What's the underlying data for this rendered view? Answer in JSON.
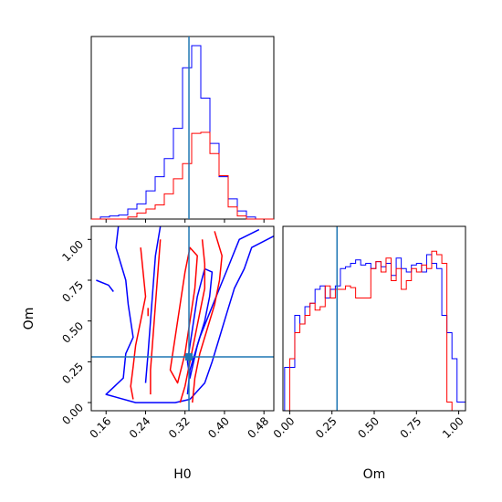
{
  "chart_data": {
    "type": "corner",
    "parameters": [
      "H0",
      "Om"
    ],
    "truth": {
      "H0": 0.328,
      "Om": 0.28
    },
    "colors": {
      "series_a": "#0000ff",
      "series_b": "#ff0000",
      "truth": "#1f77b4"
    },
    "grid": false,
    "panels": {
      "hist_H0": {
        "xlim": [
          0.13,
          0.5
        ],
        "xticks": [
          0.16,
          0.24,
          0.32,
          0.4,
          0.48
        ],
        "bin_edges": [
          0.13,
          0.1485,
          0.167,
          0.1855,
          0.204,
          0.2225,
          0.241,
          0.2595,
          0.278,
          0.2965,
          0.315,
          0.3335,
          0.352,
          0.3705,
          0.389,
          0.4075,
          0.426,
          0.4445,
          0.463,
          0.4815,
          0.5
        ],
        "series": [
          {
            "color": "blue",
            "counts": [
              0,
              2,
              3,
              4,
              10,
              15,
              28,
              42,
              60,
              90,
              150,
              172,
              120,
              75,
              42,
              20,
              8,
              2,
              0,
              0
            ]
          },
          {
            "color": "red",
            "counts": [
              0,
              0,
              0,
              0,
              2,
              6,
              10,
              14,
              25,
              40,
              55,
              85,
              86,
              65,
              43,
              12,
              3,
              0,
              0,
              0
            ]
          }
        ]
      },
      "hist_Om": {
        "xlim": [
          -0.04,
          1.04
        ],
        "xticks": [
          0.0,
          0.25,
          0.5,
          0.75,
          1.0
        ],
        "xticklabels": [
          "0.00",
          "0.25",
          "0.50",
          "0.75",
          "1.00"
        ],
        "series": [
          {
            "color": "blue",
            "bin_edges": [
              -0.03,
              0.0,
              0.03,
              0.06,
              0.09,
              0.12,
              0.15,
              0.18,
              0.21,
              0.24,
              0.27,
              0.3,
              0.33,
              0.36,
              0.39,
              0.42,
              0.45,
              0.48,
              0.51,
              0.54,
              0.57,
              0.6,
              0.63,
              0.66,
              0.69,
              0.72,
              0.75,
              0.78,
              0.81,
              0.84,
              0.87,
              0.9,
              0.93,
              0.96,
              0.99,
              1.02,
              1.05
            ],
            "counts": [
              0.25,
              0.25,
              0.55,
              0.5,
              0.6,
              0.62,
              0.7,
              0.72,
              0.65,
              0.7,
              0.72,
              0.82,
              0.83,
              0.85,
              0.87,
              0.84,
              0.85,
              0.82,
              0.86,
              0.83,
              0.85,
              0.78,
              0.88,
              0.82,
              0.8,
              0.84,
              0.85,
              0.8,
              0.9,
              0.85,
              0.82,
              0.55,
              0.45,
              0.3,
              0.05,
              0.05
            ]
          },
          {
            "color": "red",
            "bin_edges": [
              -0.03,
              0.0,
              0.03,
              0.06,
              0.09,
              0.12,
              0.15,
              0.18,
              0.21,
              0.24,
              0.27,
              0.3,
              0.33,
              0.36,
              0.39,
              0.42,
              0.45,
              0.48,
              0.51,
              0.54,
              0.57,
              0.6,
              0.63,
              0.66,
              0.69,
              0.72,
              0.75,
              0.78,
              0.81,
              0.84,
              0.87,
              0.9,
              0.93,
              0.96,
              0.99,
              1.02,
              1.05
            ],
            "counts": [
              0,
              0.3,
              0.45,
              0.5,
              0.55,
              0.62,
              0.58,
              0.6,
              0.72,
              0.65,
              0.7,
              0.7,
              0.72,
              0.71,
              0.65,
              0.65,
              0.65,
              0.82,
              0.86,
              0.8,
              0.88,
              0.75,
              0.82,
              0.7,
              0.75,
              0.82,
              0.8,
              0.84,
              0.82,
              0.92,
              0.9,
              0.85,
              0.05,
              0,
              0,
              0
            ]
          }
        ]
      },
      "contour_H0_Om": {
        "xlim": [
          0.13,
          0.5
        ],
        "ylim": [
          -0.05,
          1.08
        ],
        "yticks": [
          0.0,
          0.25,
          0.5,
          0.75,
          1.0
        ],
        "yticklabels": [
          "0.00",
          "0.25",
          "0.50",
          "0.75",
          "1.00"
        ],
        "contours": [
          {
            "color": "blue",
            "level": 1,
            "closed": false,
            "points": [
              [
                0.185,
                1.08
              ],
              [
                0.18,
                0.95
              ],
              [
                0.19,
                0.85
              ],
              [
                0.2,
                0.75
              ],
              [
                0.205,
                0.6
              ],
              [
                0.21,
                0.5
              ],
              [
                0.215,
                0.4
              ],
              [
                0.2,
                0.3
              ],
              [
                0.195,
                0.15
              ],
              [
                0.16,
                0.05
              ],
              [
                0.22,
                0.0
              ],
              [
                0.3,
                0.0
              ],
              [
                0.33,
                0.02
              ]
            ]
          },
          {
            "color": "blue",
            "level": 1,
            "closed": false,
            "points": [
              [
                0.33,
                0.02
              ],
              [
                0.36,
                0.12
              ],
              [
                0.375,
                0.25
              ],
              [
                0.39,
                0.4
              ],
              [
                0.405,
                0.55
              ],
              [
                0.42,
                0.7
              ],
              [
                0.44,
                0.82
              ],
              [
                0.455,
                0.95
              ],
              [
                0.5,
                1.02
              ]
            ]
          },
          {
            "color": "blue",
            "level": 2,
            "closed": false,
            "points": [
              [
                0.24,
                0.12
              ],
              [
                0.245,
                0.3
              ],
              [
                0.25,
                0.5
              ],
              [
                0.255,
                0.7
              ],
              [
                0.26,
                0.9
              ],
              [
                0.27,
                1.08
              ]
            ]
          },
          {
            "color": "blue",
            "level": 2,
            "closed": false,
            "points": [
              [
                0.325,
                0.05
              ],
              [
                0.33,
                0.2
              ],
              [
                0.35,
                0.4
              ],
              [
                0.37,
                0.55
              ],
              [
                0.39,
                0.7
              ],
              [
                0.41,
                0.85
              ],
              [
                0.43,
                1.0
              ],
              [
                0.47,
                1.06
              ]
            ]
          },
          {
            "color": "blue",
            "level": 3,
            "closed": true,
            "points": [
              [
                0.33,
                0.15
              ],
              [
                0.345,
                0.35
              ],
              [
                0.36,
                0.5
              ],
              [
                0.37,
                0.65
              ],
              [
                0.375,
                0.8
              ],
              [
                0.36,
                0.82
              ],
              [
                0.345,
                0.65
              ],
              [
                0.335,
                0.45
              ],
              [
                0.325,
                0.25
              ]
            ]
          },
          {
            "color": "blue",
            "level": 3,
            "closed": false,
            "points": [
              [
                0.14,
                0.75
              ],
              [
                0.165,
                0.72
              ],
              [
                0.175,
                0.68
              ]
            ]
          },
          {
            "color": "red",
            "level": 1,
            "closed": false,
            "points": [
              [
                0.23,
                0.95
              ],
              [
                0.235,
                0.8
              ],
              [
                0.24,
                0.65
              ],
              [
                0.23,
                0.5
              ],
              [
                0.22,
                0.35
              ],
              [
                0.215,
                0.22
              ],
              [
                0.21,
                0.1
              ],
              [
                0.215,
                0.02
              ]
            ]
          },
          {
            "color": "red",
            "level": 1,
            "closed": false,
            "points": [
              [
                0.38,
                1.05
              ],
              [
                0.395,
                0.9
              ],
              [
                0.39,
                0.75
              ],
              [
                0.38,
                0.6
              ],
              [
                0.365,
                0.45
              ],
              [
                0.35,
                0.3
              ],
              [
                0.34,
                0.15
              ],
              [
                0.335,
                0.0
              ]
            ]
          },
          {
            "color": "red",
            "level": 2,
            "closed": false,
            "points": [
              [
                0.27,
                1.0
              ],
              [
                0.265,
                0.8
              ],
              [
                0.26,
                0.6
              ],
              [
                0.255,
                0.4
              ],
              [
                0.25,
                0.2
              ],
              [
                0.25,
                0.05
              ]
            ]
          },
          {
            "color": "red",
            "level": 2,
            "closed": false,
            "points": [
              [
                0.355,
                1.0
              ],
              [
                0.36,
                0.85
              ],
              [
                0.36,
                0.7
              ],
              [
                0.35,
                0.55
              ],
              [
                0.34,
                0.4
              ],
              [
                0.33,
                0.25
              ],
              [
                0.32,
                0.1
              ],
              [
                0.31,
                0.0
              ]
            ]
          },
          {
            "color": "red",
            "level": 3,
            "closed": true,
            "points": [
              [
                0.29,
                0.2
              ],
              [
                0.3,
                0.4
              ],
              [
                0.31,
                0.6
              ],
              [
                0.32,
                0.8
              ],
              [
                0.33,
                0.95
              ],
              [
                0.345,
                0.9
              ],
              [
                0.34,
                0.7
              ],
              [
                0.33,
                0.5
              ],
              [
                0.32,
                0.3
              ],
              [
                0.305,
                0.12
              ]
            ]
          },
          {
            "color": "red",
            "level": 3,
            "closed": false,
            "points": [
              [
                0.245,
                0.58
              ],
              [
                0.245,
                0.53
              ]
            ]
          }
        ]
      }
    },
    "xlabels": {
      "bottom_left": "H0",
      "bottom_right": "Om"
    },
    "ylabel_left": "Om"
  }
}
